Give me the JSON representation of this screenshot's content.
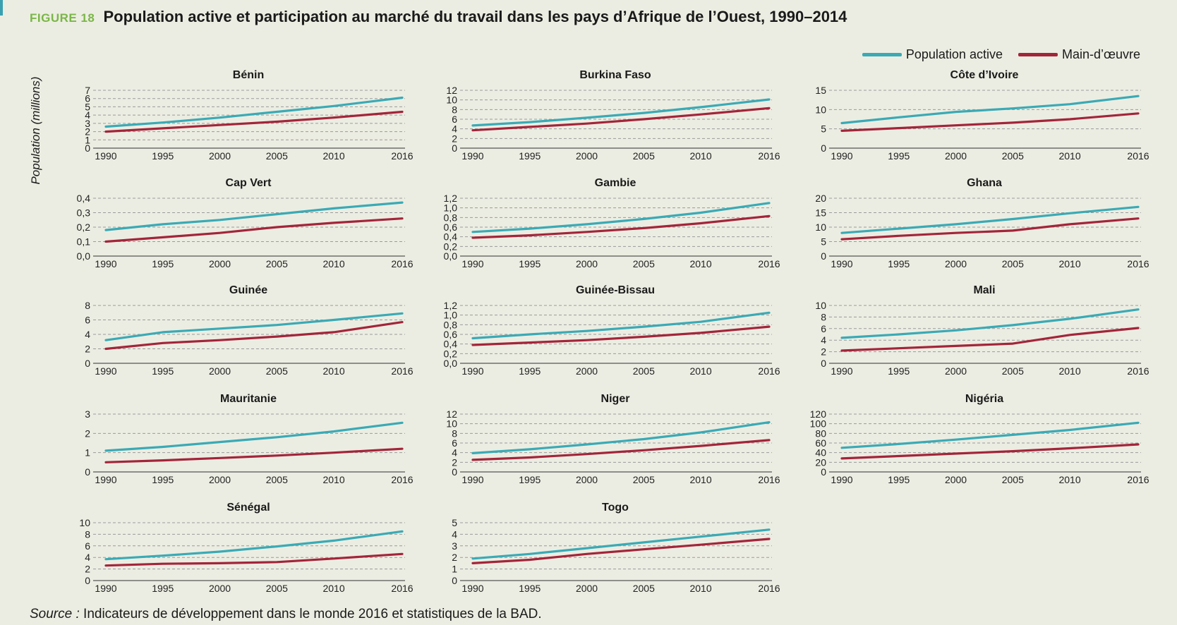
{
  "figure": {
    "label": "FIGURE 18",
    "title": "Population active et participation au marché du travail dans les pays d’Afrique de l’Ouest, 1990–2014",
    "y_axis_title": "Population (millions)",
    "source_label": "Source :",
    "source_text": "Indicateurs de développement dans le monde 2016 et statistiques de la BAD."
  },
  "legend": [
    {
      "name": "Population active",
      "color": "#3aaab5"
    },
    {
      "name": "Main-d’œuvre",
      "color": "#a3253a"
    }
  ],
  "colors": {
    "active": "#3aaab5",
    "labor": "#a3253a",
    "grid": "#9a9a9a",
    "background": "#ecede2"
  },
  "chart_data": [
    {
      "type": "line",
      "title": "Bénin",
      "x": [
        1990,
        1995,
        2000,
        2005,
        2010,
        2016
      ],
      "x_tick_labels": [
        "1990",
        "1995",
        "2000",
        "2005",
        "2010",
        "2016"
      ],
      "ylim": [
        0,
        7
      ],
      "y_ticks": [
        "0",
        "1",
        "2",
        "3",
        "4",
        "5",
        "6",
        "7"
      ],
      "series": [
        {
          "name": "Population active",
          "values": [
            2.6,
            3.1,
            3.7,
            4.4,
            5.1,
            6.1
          ]
        },
        {
          "name": "Main-d’œuvre",
          "values": [
            2.0,
            2.4,
            2.8,
            3.2,
            3.7,
            4.4
          ]
        }
      ]
    },
    {
      "type": "line",
      "title": "Burkina Faso",
      "x": [
        1990,
        1995,
        2000,
        2005,
        2010,
        2016
      ],
      "x_tick_labels": [
        "1990",
        "1995",
        "2000",
        "2005",
        "2010",
        "2016"
      ],
      "ylim": [
        0,
        12
      ],
      "y_ticks": [
        "0",
        "2",
        "4",
        "6",
        "8",
        "10",
        "12"
      ],
      "series": [
        {
          "name": "Population active",
          "values": [
            4.7,
            5.4,
            6.3,
            7.3,
            8.5,
            10.1
          ]
        },
        {
          "name": "Main-d’œuvre",
          "values": [
            3.7,
            4.4,
            5.1,
            6.0,
            7.0,
            8.3
          ]
        }
      ]
    },
    {
      "type": "line",
      "title": "Côte d’Ivoire",
      "x": [
        1990,
        1995,
        2000,
        2005,
        2010,
        2016
      ],
      "x_tick_labels": [
        "1990",
        "1995",
        "2000",
        "2005",
        "2010",
        "2016"
      ],
      "ylim": [
        0,
        15
      ],
      "y_ticks": [
        "0",
        "5",
        "10",
        "15"
      ],
      "series": [
        {
          "name": "Population active",
          "values": [
            6.5,
            8.0,
            9.4,
            10.3,
            11.4,
            13.5
          ]
        },
        {
          "name": "Main-d’œuvre",
          "values": [
            4.5,
            5.2,
            5.9,
            6.6,
            7.5,
            9.0
          ]
        }
      ]
    },
    {
      "type": "line",
      "title": "Cap Vert",
      "x": [
        1990,
        1995,
        2000,
        2005,
        2010,
        2016
      ],
      "x_tick_labels": [
        "1990",
        "1995",
        "2000",
        "2005",
        "2010",
        "2016"
      ],
      "ylim": [
        0,
        0.4
      ],
      "y_ticks": [
        "0,0",
        "0,1",
        "0,2",
        "0,3",
        "0,4"
      ],
      "series": [
        {
          "name": "Population active",
          "values": [
            0.18,
            0.22,
            0.25,
            0.29,
            0.33,
            0.37
          ]
        },
        {
          "name": "Main-d’œuvre",
          "values": [
            0.1,
            0.13,
            0.16,
            0.2,
            0.23,
            0.26
          ]
        }
      ]
    },
    {
      "type": "line",
      "title": "Gambie",
      "x": [
        1990,
        1995,
        2000,
        2005,
        2010,
        2016
      ],
      "x_tick_labels": [
        "1990",
        "1995",
        "2000",
        "2005",
        "2010",
        "2016"
      ],
      "ylim": [
        0,
        1.2
      ],
      "y_ticks": [
        "0,0",
        "0,2",
        "0,4",
        "0,6",
        "0,8",
        "1,0",
        "1,2"
      ],
      "series": [
        {
          "name": "Population active",
          "values": [
            0.5,
            0.57,
            0.66,
            0.77,
            0.9,
            1.1
          ]
        },
        {
          "name": "Main-d’œuvre",
          "values": [
            0.38,
            0.43,
            0.5,
            0.58,
            0.68,
            0.83
          ]
        }
      ]
    },
    {
      "type": "line",
      "title": "Ghana",
      "x": [
        1990,
        1995,
        2000,
        2005,
        2010,
        2016
      ],
      "x_tick_labels": [
        "1990",
        "1995",
        "2000",
        "2005",
        "2010",
        "2016"
      ],
      "ylim": [
        0,
        20
      ],
      "y_ticks": [
        "0",
        "5",
        "10",
        "15",
        "20"
      ],
      "series": [
        {
          "name": "Population active",
          "values": [
            8.0,
            9.5,
            11.0,
            12.8,
            14.8,
            17.0
          ]
        },
        {
          "name": "Main-d’œuvre",
          "values": [
            5.8,
            7.0,
            8.0,
            8.8,
            11.0,
            13.0
          ]
        }
      ]
    },
    {
      "type": "line",
      "title": "Guinée",
      "x": [
        1990,
        1995,
        2000,
        2005,
        2010,
        2016
      ],
      "x_tick_labels": [
        "1990",
        "1995",
        "2000",
        "2005",
        "2010",
        "2016"
      ],
      "ylim": [
        0,
        8
      ],
      "y_ticks": [
        "0",
        "2",
        "4",
        "6",
        "8"
      ],
      "series": [
        {
          "name": "Population active",
          "values": [
            3.2,
            4.3,
            4.8,
            5.3,
            6.0,
            6.9
          ]
        },
        {
          "name": "Main-d’œuvre",
          "values": [
            2.0,
            2.8,
            3.2,
            3.7,
            4.3,
            5.7
          ]
        }
      ]
    },
    {
      "type": "line",
      "title": "Guinée-Bissau",
      "x": [
        1990,
        1995,
        2000,
        2005,
        2010,
        2016
      ],
      "x_tick_labels": [
        "1990",
        "1995",
        "2000",
        "2005",
        "2010",
        "2016"
      ],
      "ylim": [
        0,
        1.2
      ],
      "y_ticks": [
        "0,0",
        "0,2",
        "0,4",
        "0,6",
        "0,8",
        "1,0",
        "1,2"
      ],
      "series": [
        {
          "name": "Population active",
          "values": [
            0.52,
            0.6,
            0.67,
            0.76,
            0.86,
            1.05
          ]
        },
        {
          "name": "Main-d’œuvre",
          "values": [
            0.38,
            0.43,
            0.48,
            0.55,
            0.63,
            0.76
          ]
        }
      ]
    },
    {
      "type": "line",
      "title": "Mali",
      "x": [
        1990,
        1995,
        2000,
        2005,
        2010,
        2016
      ],
      "x_tick_labels": [
        "1990",
        "1995",
        "2000",
        "2005",
        "2010",
        "2016"
      ],
      "ylim": [
        0,
        10
      ],
      "y_ticks": [
        "0",
        "2",
        "4",
        "6",
        "8",
        "10"
      ],
      "series": [
        {
          "name": "Population active",
          "values": [
            4.4,
            5.0,
            5.7,
            6.6,
            7.7,
            9.3
          ]
        },
        {
          "name": "Main-d’œuvre",
          "values": [
            2.2,
            2.6,
            3.0,
            3.4,
            4.9,
            6.1
          ]
        }
      ]
    },
    {
      "type": "line",
      "title": "Mauritanie",
      "x": [
        1990,
        1995,
        2000,
        2005,
        2010,
        2016
      ],
      "x_tick_labels": [
        "1990",
        "1995",
        "2000",
        "2005",
        "2010",
        "2016"
      ],
      "ylim": [
        0,
        3
      ],
      "y_ticks": [
        "0",
        "1",
        "2",
        "3"
      ],
      "series": [
        {
          "name": "Population active",
          "values": [
            1.1,
            1.3,
            1.55,
            1.8,
            2.1,
            2.55
          ]
        },
        {
          "name": "Main-d’œuvre",
          "values": [
            0.5,
            0.6,
            0.72,
            0.85,
            1.0,
            1.2
          ]
        }
      ]
    },
    {
      "type": "line",
      "title": "Niger",
      "x": [
        1990,
        1995,
        2000,
        2005,
        2010,
        2016
      ],
      "x_tick_labels": [
        "1990",
        "1995",
        "2000",
        "2005",
        "2010",
        "2016"
      ],
      "ylim": [
        0,
        12
      ],
      "y_ticks": [
        "0",
        "2",
        "4",
        "6",
        "8",
        "10",
        "12"
      ],
      "series": [
        {
          "name": "Population active",
          "values": [
            3.9,
            4.7,
            5.7,
            6.8,
            8.2,
            10.3
          ]
        },
        {
          "name": "Main-d’œuvre",
          "values": [
            2.5,
            3.0,
            3.7,
            4.5,
            5.4,
            6.6
          ]
        }
      ]
    },
    {
      "type": "line",
      "title": "Nigéria",
      "x": [
        1990,
        1995,
        2000,
        2005,
        2010,
        2016
      ],
      "x_tick_labels": [
        "1990",
        "1995",
        "2000",
        "2005",
        "2010",
        "2016"
      ],
      "ylim": [
        0,
        120
      ],
      "y_ticks": [
        "0",
        "20",
        "40",
        "60",
        "80",
        "100",
        "120"
      ],
      "series": [
        {
          "name": "Population active",
          "values": [
            50,
            58,
            67,
            77,
            87,
            102
          ]
        },
        {
          "name": "Main-d’œuvre",
          "values": [
            28,
            33,
            38,
            43,
            49,
            57
          ]
        }
      ]
    },
    {
      "type": "line",
      "title": "Sénégal",
      "x": [
        1990,
        1995,
        2000,
        2005,
        2010,
        2016
      ],
      "x_tick_labels": [
        "1990",
        "1995",
        "2000",
        "2005",
        "2010",
        "2016"
      ],
      "ylim": [
        0,
        10
      ],
      "y_ticks": [
        "0",
        "2",
        "4",
        "6",
        "8",
        "10"
      ],
      "series": [
        {
          "name": "Population active",
          "values": [
            3.7,
            4.3,
            5.0,
            5.9,
            6.9,
            8.5
          ]
        },
        {
          "name": "Main-d’œuvre",
          "values": [
            2.6,
            2.9,
            3.0,
            3.2,
            3.8,
            4.6
          ]
        }
      ]
    },
    {
      "type": "line",
      "title": "Togo",
      "x": [
        1990,
        1995,
        2000,
        2005,
        2010,
        2016
      ],
      "x_tick_labels": [
        "1990",
        "1995",
        "2000",
        "2005",
        "2010",
        "2016"
      ],
      "ylim": [
        0,
        5
      ],
      "y_ticks": [
        "0",
        "1",
        "2",
        "3",
        "4",
        "5"
      ],
      "series": [
        {
          "name": "Population active",
          "values": [
            1.9,
            2.3,
            2.8,
            3.3,
            3.8,
            4.4
          ]
        },
        {
          "name": "Main-d’œuvre",
          "values": [
            1.5,
            1.8,
            2.3,
            2.7,
            3.1,
            3.6
          ]
        }
      ]
    }
  ]
}
